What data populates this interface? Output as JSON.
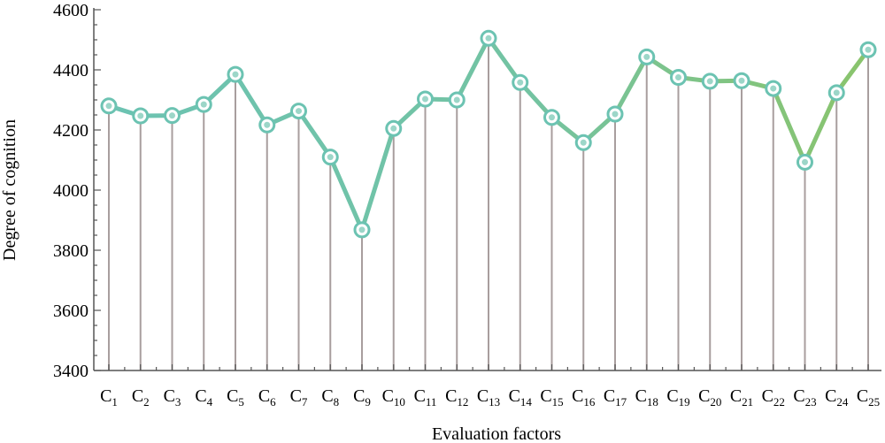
{
  "chart_data": {
    "type": "line",
    "xlabel": "Evaluation factors",
    "ylabel": "Degree of cognition",
    "ylim": [
      3400,
      4600
    ],
    "yticks": [
      3400,
      3600,
      3800,
      4000,
      4200,
      4400,
      4600
    ],
    "grid": false,
    "categories": [
      {
        "main": "C",
        "sub": "1"
      },
      {
        "main": "C",
        "sub": "2"
      },
      {
        "main": "C",
        "sub": "3"
      },
      {
        "main": "C",
        "sub": "4"
      },
      {
        "main": "C",
        "sub": "5"
      },
      {
        "main": "C",
        "sub": "6"
      },
      {
        "main": "C",
        "sub": "7"
      },
      {
        "main": "C",
        "sub": "8"
      },
      {
        "main": "C",
        "sub": "9"
      },
      {
        "main": "C",
        "sub": "10"
      },
      {
        "main": "C",
        "sub": "11"
      },
      {
        "main": "C",
        "sub": "12"
      },
      {
        "main": "C",
        "sub": "13"
      },
      {
        "main": "C",
        "sub": "14"
      },
      {
        "main": "C",
        "sub": "15"
      },
      {
        "main": "C",
        "sub": "16"
      },
      {
        "main": "C",
        "sub": "17"
      },
      {
        "main": "C",
        "sub": "18"
      },
      {
        "main": "C",
        "sub": "19"
      },
      {
        "main": "C",
        "sub": "20"
      },
      {
        "main": "C",
        "sub": "21"
      },
      {
        "main": "C",
        "sub": "22"
      },
      {
        "main": "C",
        "sub": "23"
      },
      {
        "main": "C",
        "sub": "24"
      },
      {
        "main": "C",
        "sub": "25"
      }
    ],
    "values": [
      4280,
      4247,
      4248,
      4285,
      4385,
      4217,
      4263,
      4110,
      3868,
      4205,
      4303,
      4300,
      4505,
      4358,
      4242,
      4158,
      4253,
      4443,
      4375,
      4362,
      4364,
      4338,
      4093,
      4324,
      4467
    ],
    "colors": {
      "line_start": "#6cc3b2",
      "line_end": "#8ac46c",
      "marker_fill": "#ffffff",
      "marker_stroke": "#6cc3b2",
      "marker_center": "#9cd6c8",
      "stem": "#a89e9e",
      "axis": "#555555"
    }
  }
}
